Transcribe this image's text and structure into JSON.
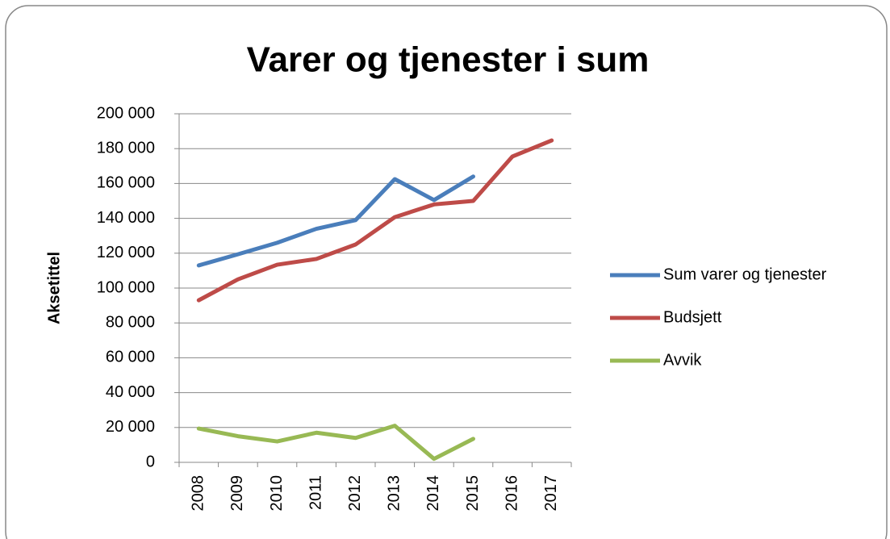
{
  "chart_data": {
    "type": "line",
    "title": "Varer og tjenester i sum",
    "y_label": "Aksetittel",
    "categories": [
      "2008",
      "2009",
      "2010",
      "2011",
      "2012",
      "2013",
      "2014",
      "2015",
      "2016",
      "2017"
    ],
    "series": [
      {
        "name": "Sum varer og tjenester",
        "color": "#4a7ebb",
        "values": [
          113000,
          119400,
          126000,
          134000,
          139000,
          162500,
          150500,
          164000,
          null,
          null
        ]
      },
      {
        "name": "Budsjett",
        "color": "#be4b48",
        "values": [
          93000,
          105000,
          113400,
          116700,
          125000,
          140700,
          148000,
          150000,
          175500,
          184700
        ]
      },
      {
        "name": "Avvik",
        "color": "#98b954",
        "values": [
          19400,
          15000,
          12000,
          17000,
          14000,
          21000,
          2000,
          13500,
          null,
          null
        ]
      }
    ],
    "ylim": [
      0,
      200000
    ],
    "yticks": [
      0,
      {
        "value": 20000,
        "label": "20 000"
      },
      {
        "value": 40000,
        "label": "40 000"
      },
      {
        "value": 60000,
        "label": "60 000"
      },
      {
        "value": 80000,
        "label": "80 000"
      },
      {
        "value": 100000,
        "label": "100 000"
      },
      {
        "value": 120000,
        "label": "120 000"
      },
      {
        "value": 140000,
        "label": "140 000"
      },
      {
        "value": 160000,
        "label": "160 000"
      },
      {
        "value": 180000,
        "label": "180 000"
      },
      {
        "value": 200000,
        "label": "200 000"
      }
    ],
    "grid": true,
    "legend": "right"
  }
}
